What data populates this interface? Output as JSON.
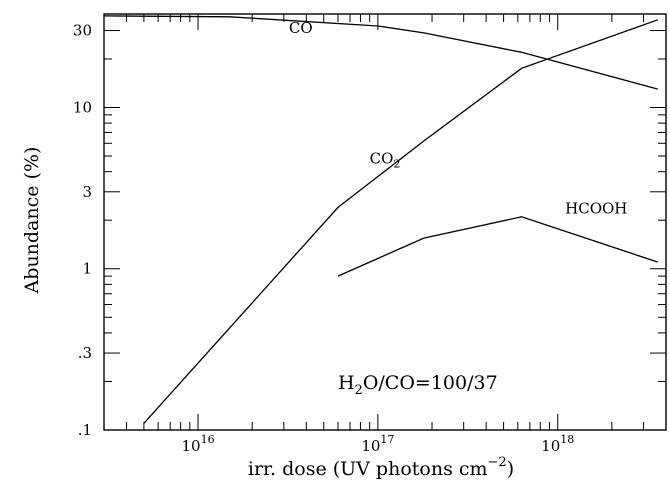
{
  "chart_data": {
    "type": "line",
    "xscale": "log",
    "yscale": "log",
    "xlim": [
      3000000000000000.0,
      4e+18
    ],
    "ylim": [
      0.1,
      38
    ],
    "xlabel": "irr. dose (UV photons cm",
    "xlabel_exponent": "−2",
    "xlabel_close": ")",
    "ylabel": "Abundance (%)",
    "x_ticks": [
      {
        "value": 1e+16,
        "base": "10",
        "exp": "16"
      },
      {
        "value": 1e+17,
        "base": "10",
        "exp": "17"
      },
      {
        "value": 1e+18,
        "base": "10",
        "exp": "18"
      }
    ],
    "y_ticks": [
      {
        "value": 0.1,
        "label": ".1"
      },
      {
        "value": 0.3,
        "label": ".3"
      },
      {
        "value": 1,
        "label": "1"
      },
      {
        "value": 3,
        "label": "3"
      },
      {
        "value": 10,
        "label": "10"
      },
      {
        "value": 30,
        "label": "30"
      }
    ],
    "series": [
      {
        "name": "CO",
        "x": [
          3000000000000000.0,
          1.5e+16,
          1e+17,
          1.8e+17,
          6.3e+17,
          3.6e+18
        ],
        "y": [
          37,
          36.5,
          32,
          29,
          22,
          13
        ],
        "label_x": 3.2e+16,
        "label_y": 29
      },
      {
        "name": "CO",
        "subscript": "2",
        "x": [
          5000000000000000.0,
          6e+16,
          1.8e+17,
          6.3e+17,
          3.6e+18
        ],
        "y": [
          0.11,
          2.4,
          6.2,
          17.5,
          35
        ],
        "label_x": 9e+16,
        "label_y": 4.5
      },
      {
        "name": "HCOOH",
        "x": [
          6e+16,
          1.8e+17,
          6.3e+17,
          3.6e+18
        ],
        "y": [
          0.9,
          1.55,
          2.1,
          1.1
        ],
        "label_x": 1.1e+18,
        "label_y": 2.2
      }
    ],
    "annotation": {
      "parts": [
        {
          "text": "H",
          "sub": false
        },
        {
          "text": "2",
          "sub": true
        },
        {
          "text": "O/CO=100/37",
          "sub": false
        }
      ],
      "x": 6e+16,
      "y": 0.18
    }
  }
}
